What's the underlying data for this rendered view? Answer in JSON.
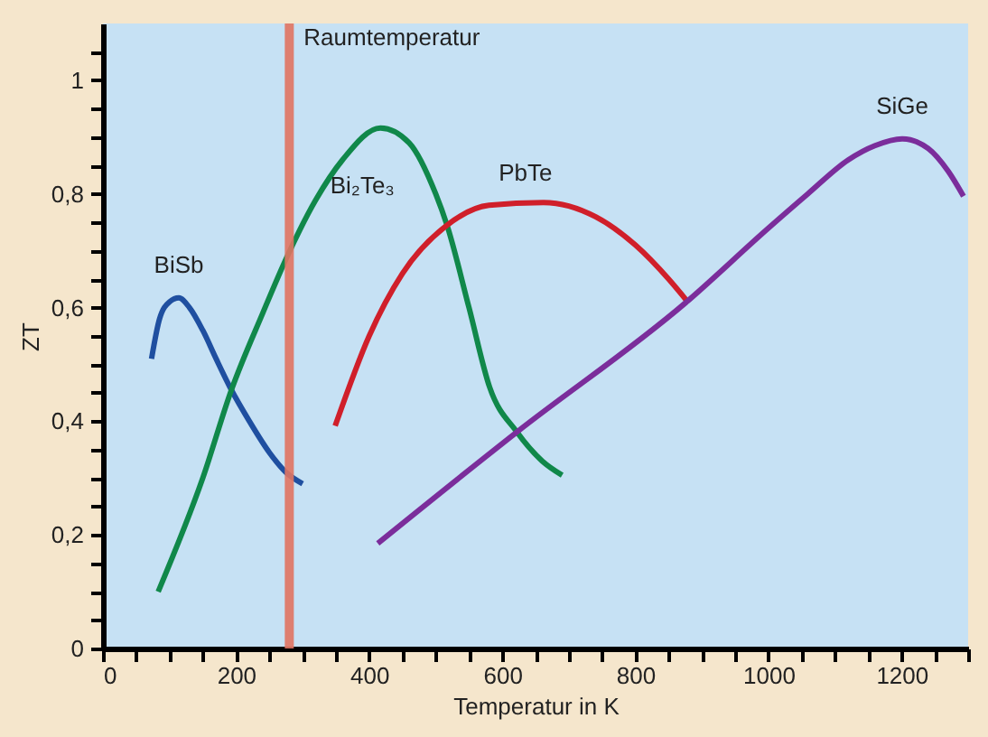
{
  "chart_data": {
    "type": "line",
    "xlabel": "Temperatur in K",
    "ylabel": "ZT",
    "xlim": [
      0,
      1300
    ],
    "ylim": [
      0,
      1.1
    ],
    "xticks": [
      0,
      {
        "value": 50,
        "label": null
      },
      {
        "value": 100,
        "label": null
      },
      {
        "value": 150,
        "label": null
      },
      200,
      {
        "value": 250,
        "label": null
      },
      {
        "value": 300,
        "label": null
      },
      {
        "value": 350,
        "label": null
      },
      400,
      {
        "value": 450,
        "label": null
      },
      {
        "value": 500,
        "label": null
      },
      {
        "value": 550,
        "label": null
      },
      600,
      {
        "value": 650,
        "label": null
      },
      {
        "value": 700,
        "label": null
      },
      {
        "value": 750,
        "label": null
      },
      800,
      {
        "value": 850,
        "label": null
      },
      {
        "value": 900,
        "label": null
      },
      {
        "value": 950,
        "label": null
      },
      1000,
      {
        "value": 1050,
        "label": null
      },
      {
        "value": 1100,
        "label": null
      },
      {
        "value": 1150,
        "label": null
      },
      1200,
      {
        "value": 1250,
        "label": null
      },
      {
        "value": 1300,
        "label": null
      }
    ],
    "yticks": [
      0,
      {
        "value": 0.05,
        "label": null
      },
      {
        "value": 0.1,
        "label": null
      },
      {
        "value": 0.15,
        "label": null
      },
      {
        "value": 0.2,
        "label": "0,2"
      },
      {
        "value": 0.25,
        "label": null
      },
      {
        "value": 0.3,
        "label": null
      },
      {
        "value": 0.35,
        "label": null
      },
      {
        "value": 0.4,
        "label": "0,4"
      },
      {
        "value": 0.45,
        "label": null
      },
      {
        "value": 0.5,
        "label": null
      },
      {
        "value": 0.55,
        "label": null
      },
      {
        "value": 0.6,
        "label": "0,6"
      },
      {
        "value": 0.65,
        "label": null
      },
      {
        "value": 0.7,
        "label": null
      },
      {
        "value": 0.75,
        "label": null
      },
      {
        "value": 0.8,
        "label": "0,8"
      },
      {
        "value": 0.85,
        "label": null
      },
      {
        "value": 0.9,
        "label": null
      },
      {
        "value": 0.95,
        "label": null
      },
      1,
      {
        "value": 1.05,
        "label": null
      }
    ],
    "grid": false,
    "legend": false,
    "marker": "none",
    "line_style": "solid",
    "ref_lines": [
      {
        "axis": "x",
        "value": 280,
        "label": "Raumtemperatur",
        "color": "#e07462"
      }
    ],
    "series": [
      {
        "name": "BiSb",
        "color": "#1f4fa0",
        "x": [
          73,
          85,
          100,
          114,
          130,
          150,
          170,
          193,
          220,
          250,
          275,
          300
        ],
        "values": [
          0.51,
          0.58,
          0.61,
          0.617,
          0.6,
          0.56,
          0.51,
          0.455,
          0.4,
          0.345,
          0.31,
          0.29
        ]
      },
      {
        "name": "Bi₂Te₃",
        "color": "#10884a",
        "x": [
          83,
          150,
          193,
          240,
          276,
          320,
          360,
          417,
          460,
          500,
          517,
          550,
          581,
          622,
          660,
          690
        ],
        "values": [
          0.1,
          0.3,
          0.455,
          0.59,
          0.688,
          0.79,
          0.86,
          0.916,
          0.89,
          0.8,
          0.745,
          0.6,
          0.46,
          0.381,
          0.33,
          0.305
        ]
      },
      {
        "name": "PbTe",
        "color": "#d01f2a",
        "x": [
          349,
          400,
          450,
          517,
          580,
          662,
          740,
          800,
          850,
          878
        ],
        "values": [
          0.392,
          0.55,
          0.66,
          0.745,
          0.78,
          0.785,
          0.76,
          0.71,
          0.65,
          0.611
        ]
      },
      {
        "name": "SiGe",
        "color": "#7b2d9b",
        "x": [
          413,
          622,
          876,
          1000,
          1059,
          1120,
          1160,
          1201,
          1240,
          1270,
          1293
        ],
        "values": [
          0.185,
          0.381,
          0.609,
          0.74,
          0.8,
          0.86,
          0.885,
          0.897,
          0.88,
          0.84,
          0.796
        ]
      }
    ]
  }
}
